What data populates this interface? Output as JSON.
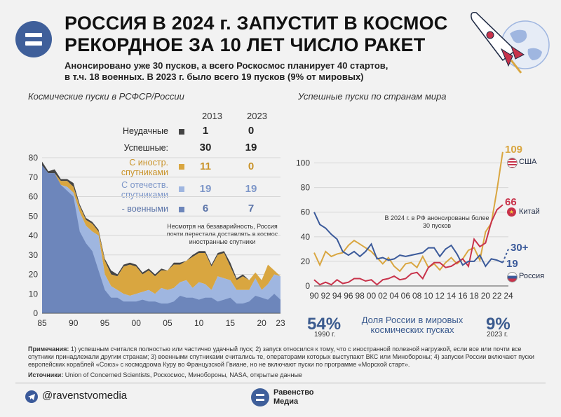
{
  "title_line1": "РОССИЯ В 2024 г. ЗАПУСТИТ В КОСМОС",
  "title_line2": "РЕКОРДНОЕ ЗА 10 ЛЕТ ЧИСЛО РАКЕТ",
  "subtitle_line1": "Анонсировано уже 30 пусков, а всего Роскосмос планирует 40 стартов,",
  "subtitle_line2": "в т.ч. 18 военных. В 2023 г. было всего 19 пусков (9% от мировых)",
  "colors": {
    "failed": "#444444",
    "foreign": "#d9a640",
    "domestic": "#9fb6e0",
    "military": "#6d86bb",
    "usa": "#d9a640",
    "china": "#c8334b",
    "russia": "#3b5a9a"
  },
  "left_chart": {
    "section_title": "Космические пуски в РСФСР/России",
    "col_2013": "2013",
    "col_2023": "2023",
    "rows": [
      {
        "label": "Неудачные",
        "v2013": "1",
        "v2023": "0",
        "color_key": "failed"
      },
      {
        "label": "Успешные:",
        "v2013": "30",
        "v2023": "19",
        "color_key": "none"
      },
      {
        "label": "С иностр.",
        "label2": "спутниками",
        "v2013": "11",
        "v2023": "0",
        "color_key": "foreign"
      },
      {
        "label": "С отечеств.",
        "label2": "спутниками",
        "v2013": "19",
        "v2023": "19",
        "color_key": "domestic"
      },
      {
        "label": "- военными",
        "v2013": "6",
        "v2023": "7",
        "color_key": "military"
      }
    ],
    "annotation": "Несмотря на безаварийность, Россия почти перестала доставлять в космос иностранные спутники"
  },
  "chart_data": [
    {
      "type": "area",
      "title": "Космические пуски в РСФСР/России",
      "x": [
        1985,
        1986,
        1987,
        1988,
        1989,
        1990,
        1991,
        1992,
        1993,
        1994,
        1995,
        1996,
        1997,
        1998,
        1999,
        2000,
        2001,
        2002,
        2003,
        2004,
        2005,
        2006,
        2007,
        2008,
        2009,
        2010,
        2011,
        2012,
        2013,
        2014,
        2015,
        2016,
        2017,
        2018,
        2019,
        2020,
        2021,
        2022,
        2023
      ],
      "xtick_labels": [
        "85",
        "90",
        "95",
        "00",
        "05",
        "10",
        "15",
        "20",
        "23"
      ],
      "ylim": [
        0,
        80
      ],
      "yticks": [
        0,
        10,
        20,
        30,
        40,
        50,
        60,
        70,
        80
      ],
      "series": [
        {
          "name": "Военными",
          "values": [
            76,
            72,
            72,
            66,
            63,
            60,
            42,
            36,
            32,
            22,
            12,
            8,
            8,
            6,
            6,
            6,
            7,
            6,
            6,
            5,
            5,
            6,
            9,
            8,
            8,
            7,
            8,
            8,
            6,
            7,
            8,
            5,
            5,
            6,
            9,
            8,
            7,
            10,
            7
          ]
        },
        {
          "name": "С отечеств. спутниками",
          "values": [
            76,
            72,
            72,
            66,
            65,
            62,
            52,
            45,
            42,
            40,
            20,
            14,
            12,
            10,
            9,
            10,
            11,
            12,
            10,
            13,
            12,
            13,
            16,
            17,
            13,
            16,
            15,
            12,
            19,
            18,
            17,
            12,
            12,
            12,
            18,
            12,
            15,
            20,
            19
          ]
        },
        {
          "name": "С иностр. спутниками",
          "values": [
            0,
            0,
            0,
            2,
            3,
            3,
            3,
            3,
            4,
            2,
            7,
            6,
            7,
            14,
            16,
            14,
            9,
            10,
            9,
            9,
            10,
            12,
            9,
            10,
            16,
            15,
            16,
            12,
            11,
            13,
            7,
            5,
            7,
            5,
            3,
            5,
            10,
            2,
            0
          ]
        },
        {
          "name": "Неудачные",
          "values": [
            2,
            1,
            2,
            1,
            1,
            2,
            1,
            1,
            1,
            1,
            1,
            2,
            1,
            1,
            1,
            1,
            1,
            1,
            1,
            1,
            0,
            1,
            1,
            0,
            1,
            1,
            1,
            1,
            1,
            1,
            2,
            1,
            1,
            0,
            0,
            0,
            0,
            0,
            0
          ]
        }
      ]
    },
    {
      "type": "line",
      "title": "Успешные пуски по странам мира",
      "x": [
        1990,
        1991,
        1992,
        1993,
        1994,
        1995,
        1996,
        1997,
        1998,
        1999,
        2000,
        2001,
        2002,
        2003,
        2004,
        2005,
        2006,
        2007,
        2008,
        2009,
        2010,
        2011,
        2012,
        2013,
        2014,
        2015,
        2016,
        2017,
        2018,
        2019,
        2020,
        2021,
        2022,
        2023
      ],
      "xtick_labels": [
        "90",
        "92",
        "94",
        "96",
        "98",
        "00",
        "02",
        "04",
        "06",
        "08",
        "10",
        "12",
        "14",
        "16",
        "18",
        "20",
        "22",
        "24"
      ],
      "ylim": [
        0,
        110
      ],
      "yticks": [
        0,
        20,
        40,
        60,
        80,
        100
      ],
      "series": [
        {
          "name": "США",
          "values": [
            27,
            17,
            28,
            24,
            26,
            27,
            33,
            37,
            34,
            31,
            28,
            23,
            18,
            23,
            16,
            12,
            18,
            19,
            15,
            24,
            15,
            18,
            13,
            19,
            23,
            18,
            22,
            29,
            31,
            21,
            44,
            51,
            78,
            109
          ]
        },
        {
          "name": "Китай",
          "values": [
            5,
            1,
            3,
            1,
            5,
            2,
            3,
            6,
            6,
            4,
            5,
            1,
            5,
            6,
            8,
            5,
            6,
            10,
            11,
            6,
            15,
            19,
            19,
            15,
            16,
            19,
            22,
            16,
            38,
            32,
            35,
            52,
            62,
            66
          ]
        },
        {
          "name": "Россия",
          "values": [
            60,
            50,
            47,
            42,
            38,
            28,
            25,
            28,
            24,
            28,
            34,
            22,
            23,
            21,
            22,
            25,
            24,
            25,
            26,
            27,
            31,
            31,
            24,
            30,
            33,
            26,
            17,
            20,
            20,
            25,
            16,
            22,
            21,
            19
          ]
        }
      ],
      "end_labels": {
        "usa": "109",
        "china": "66",
        "russia": "19",
        "forecast": "30+"
      },
      "annotation": "В 2024 г. в РФ анонсированы более 30 пусков"
    }
  ],
  "right_chart": {
    "section_title": "Успешные пуски по странам мира",
    "legend_usa": "США",
    "legend_china": "Китай",
    "legend_russia": "Россия",
    "share_title": "Доля России в мировых космических пусках",
    "share_1990_pct": "54%",
    "share_1990_year": "1990 г.",
    "share_2023_pct": "9%",
    "share_2023_year": "2023 г."
  },
  "notes_label": "Примечания:",
  "notes_text": "1) успешным считался полностью или частично удачный пуск; 2) запуск относился к тому, что с иностранной полезной нагрузкой, если все или почти все спутники принадлежали другим странам; 3) военными спутниками считались те, операторами которых выступают ВКС или Минобороны; 4) запуски России включают пуски европейских кораблей «Союз» с космодрома Куру во Французской Гвиане, но не включают пуски по программе «Морской старт».",
  "sources_label": "Источники:",
  "sources_text": "Union of Concerned Scientists, Роскосмос, Минобороны, NASA, открытые данные",
  "footer": {
    "handle": "@ravenstvomedia",
    "brand_line1": "Равенство",
    "brand_line2": "Медиа"
  }
}
